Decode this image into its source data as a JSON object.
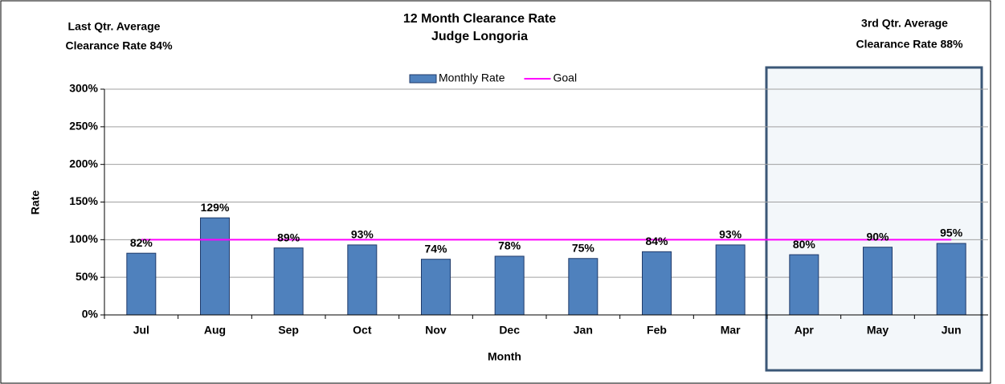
{
  "chart_data": {
    "type": "bar",
    "title": "12 Month Clearance Rate",
    "subtitle": "Judge Longoria",
    "annotations": [
      {
        "lines": [
          "Last Qtr. Average",
          "Clearance Rate 84%"
        ]
      },
      {
        "lines": [
          "3rd Qtr.  Average",
          "Clearance Rate 88%"
        ]
      }
    ],
    "x_label": "Month",
    "y_label": "Rate",
    "categories": [
      "Jul",
      "Aug",
      "Sep",
      "Oct",
      "Nov",
      "Dec",
      "Jan",
      "Feb",
      "Mar",
      "Apr",
      "May",
      "Jun"
    ],
    "series": [
      {
        "name": "Monthly Rate",
        "type": "bar",
        "color": "#4f81bd",
        "values": [
          82,
          129,
          89,
          93,
          74,
          78,
          75,
          84,
          93,
          80,
          90,
          95
        ],
        "value_labels": [
          "82%",
          "129%",
          "89%",
          "93%",
          "74%",
          "78%",
          "75%",
          "84%",
          "93%",
          "80%",
          "90%",
          "95%"
        ]
      },
      {
        "name": "Goal",
        "type": "line",
        "color": "#ff00ff",
        "values": [
          100,
          100,
          100,
          100,
          100,
          100,
          100,
          100,
          100,
          100,
          100,
          100
        ]
      }
    ],
    "ylim": [
      0,
      300
    ],
    "yticks": [
      {
        "value": 0,
        "label": "0%"
      },
      {
        "value": 50,
        "label": "50%"
      },
      {
        "value": 100,
        "label": "100%"
      },
      {
        "value": 150,
        "label": "150%"
      },
      {
        "value": 200,
        "label": "200%"
      },
      {
        "value": 250,
        "label": "250%"
      },
      {
        "value": 300,
        "label": "300%"
      }
    ],
    "grid": true,
    "legend": "top"
  }
}
